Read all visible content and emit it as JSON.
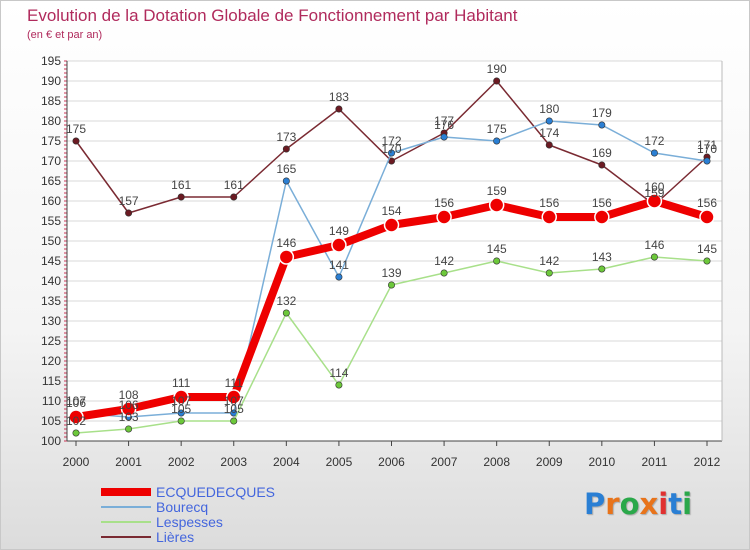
{
  "title": "Evolution de la Dotation Globale de Fonctionnement par Habitant",
  "subtitle": "(en € et par an)",
  "logo": {
    "text": "Proxiti",
    "letter_colors": [
      "#2a7fd4",
      "#e8731a",
      "#2aa84a",
      "#e8731a",
      "#e03030",
      "#2a7fd4",
      "#2aa84a"
    ]
  },
  "chart_data": {
    "type": "line",
    "title": "Evolution de la Dotation Globale de Fonctionnement par Habitant",
    "subtitle": "(en € et par an)",
    "x": [
      "2000",
      "2001",
      "2002",
      "2003",
      "2004",
      "2005",
      "2006",
      "2007",
      "2008",
      "2009",
      "2010",
      "2011",
      "2012"
    ],
    "ylim": [
      100,
      195
    ],
    "yticks": [
      100,
      105,
      110,
      115,
      120,
      125,
      130,
      135,
      140,
      145,
      150,
      155,
      160,
      165,
      170,
      175,
      180,
      185,
      190,
      195
    ],
    "grid": "horizontal",
    "legend_position": "bottom-left",
    "series": [
      {
        "name": "Lières",
        "color": "#7a2a32",
        "marker": "#6b1a22",
        "values": [
          175,
          157,
          161,
          161,
          173,
          183,
          170,
          177,
          190,
          174,
          169,
          159,
          171
        ],
        "labels": [
          "175",
          "157",
          "161",
          "161",
          "173",
          "183",
          "170",
          "177",
          "190",
          "174",
          "169",
          "159",
          "171"
        ]
      },
      {
        "name": "Bourecq",
        "color": "#7aaed8",
        "marker": "#2a7fd4",
        "values": [
          107,
          106,
          107,
          107,
          165,
          141,
          172,
          176,
          175,
          180,
          179,
          172,
          170
        ],
        "labels": [
          "107",
          "106",
          "107",
          "107",
          "165",
          "141",
          "172",
          "176",
          "175",
          "180",
          "179",
          "172",
          "170"
        ]
      },
      {
        "name": "Lespesses",
        "color": "#a8e08a",
        "marker": "#6cc83a",
        "values": [
          102,
          103,
          105,
          105,
          132,
          114,
          139,
          142,
          145,
          142,
          143,
          146,
          145
        ],
        "labels": [
          "102",
          "103",
          "105",
          "105",
          "132",
          "114",
          "139",
          "142",
          "145",
          "142",
          "143",
          "146",
          "145"
        ]
      },
      {
        "name": "ECQUEDECQUES",
        "color": "#ee0000",
        "marker": "#ee0000",
        "values": [
          106,
          108,
          111,
          111,
          146,
          149,
          154,
          156,
          159,
          156,
          156,
          160,
          156
        ],
        "labels": [
          "106",
          "108",
          "111",
          "111",
          "146",
          "149",
          "154",
          "156",
          "159",
          "156",
          "156",
          "160",
          "156"
        ]
      }
    ],
    "legend": [
      "ECQUEDECQUES",
      "Bourecq",
      "Lespesses",
      "Lières"
    ]
  }
}
